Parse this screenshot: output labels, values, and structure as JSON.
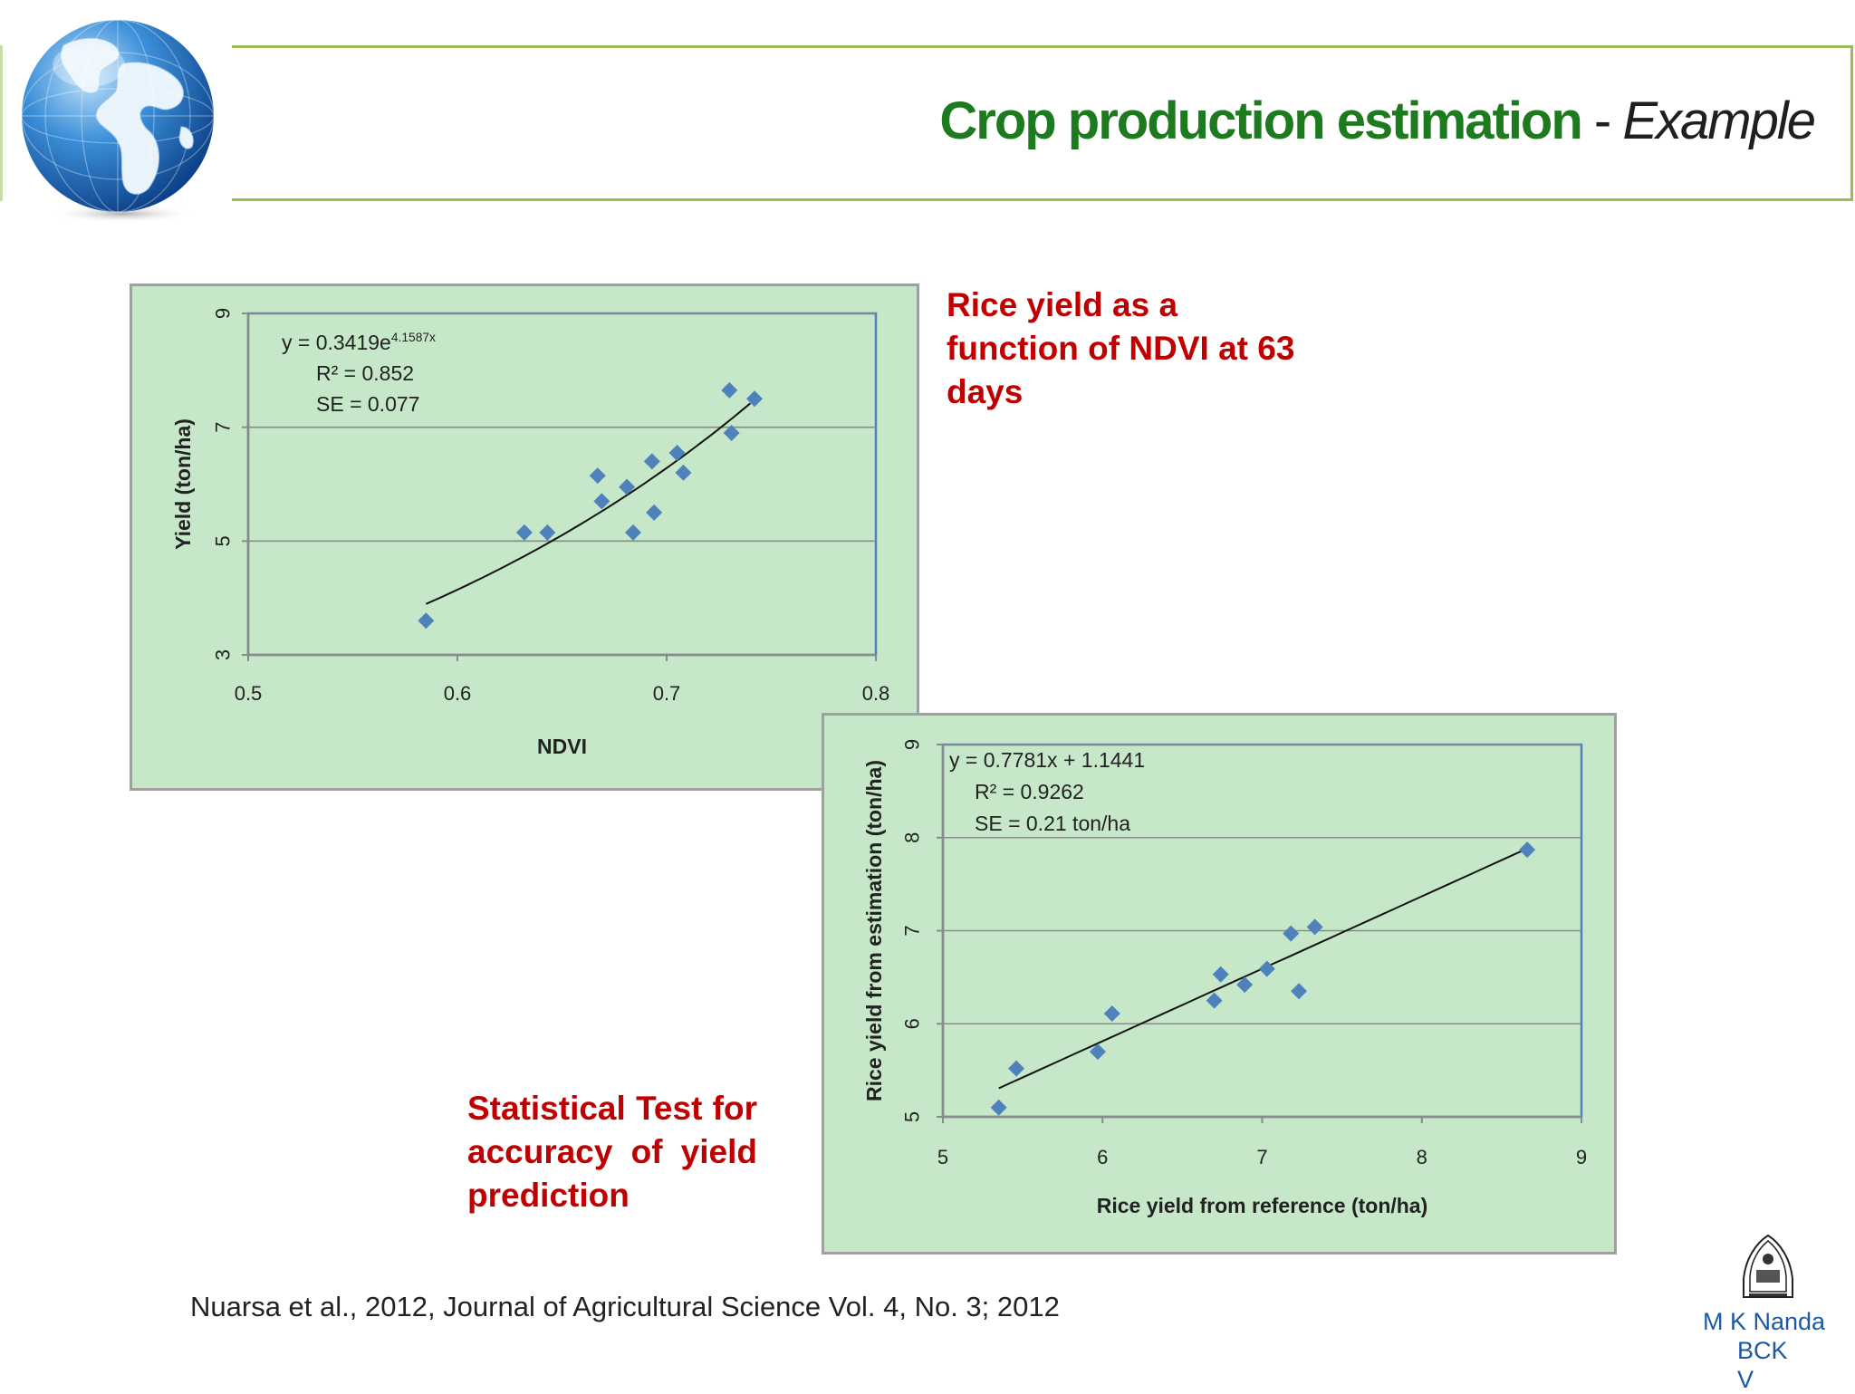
{
  "slide": {
    "title_main": "Crop production estimation",
    "title_sep": " - ",
    "title_example": "Example",
    "caption1": "Rice yield as a function of NDVI at 63 days",
    "caption2": "Statistical Test for accuracy of yield prediction",
    "citation": "Nuarsa et al., 2012,  Journal of Agricultural Science Vol. 4, No. 3; 2012",
    "author_line1": "M K Nanda",
    "author_line2": "BCK",
    "author_line3": "V"
  },
  "colors": {
    "title_green": "#1e7a1e",
    "caption_red": "#c00000",
    "chart_bg": "#c6e8c8",
    "marker_blue": "#4f81bd",
    "rule_green": "#9bbb59"
  },
  "chart_data": [
    {
      "type": "scatter",
      "title": "",
      "xlabel": "NDVI",
      "ylabel": "Yield (ton/ha)",
      "xlim": [
        0.5,
        0.8
      ],
      "ylim": [
        3,
        9
      ],
      "xticks": [
        0.5,
        0.6,
        0.7,
        0.8
      ],
      "yticks": [
        3,
        5,
        7,
        9
      ],
      "xtick_labels": [
        "0.5",
        "0.6",
        "0.7",
        "0.8"
      ],
      "ytick_labels": [
        "3",
        "5",
        "7",
        "9"
      ],
      "grid": "horizontal",
      "annotation": [
        "y = 0.3419e^4.1587x",
        "R² = 0.852",
        "SE = 0.077"
      ],
      "trendline": {
        "kind": "exponential",
        "a": 0.3419,
        "b": 4.1587,
        "x_from": 0.585,
        "x_to": 0.74
      },
      "series": [
        {
          "x": [
            0.585,
            0.632,
            0.643,
            0.667,
            0.669,
            0.681,
            0.684,
            0.693,
            0.694,
            0.705,
            0.708,
            0.73,
            0.731,
            0.742
          ],
          "y": [
            3.6,
            5.15,
            5.15,
            6.15,
            5.7,
            5.95,
            5.15,
            6.4,
            5.5,
            6.55,
            6.2,
            7.65,
            6.9,
            7.5
          ]
        }
      ]
    },
    {
      "type": "scatter",
      "title": "",
      "xlabel": "Rice yield from reference (ton/ha)",
      "ylabel": "Rice yield from estimation (ton/ha)",
      "xlim": [
        5,
        9
      ],
      "ylim": [
        5,
        9
      ],
      "xticks": [
        5,
        6,
        7,
        8,
        9
      ],
      "yticks": [
        5,
        6,
        7,
        8,
        9
      ],
      "xtick_labels": [
        "5",
        "6",
        "7",
        "8",
        "9"
      ],
      "ytick_labels": [
        "5",
        "6",
        "7",
        "8",
        "9"
      ],
      "grid": "horizontal",
      "annotation": [
        "y = 0.7781x + 1.1441",
        "R² = 0.9262",
        "SE = 0.21 ton/ha"
      ],
      "trendline": {
        "kind": "linear",
        "slope": 0.7781,
        "intercept": 1.1441,
        "x_from": 5.35,
        "x_to": 8.65
      },
      "series": [
        {
          "x": [
            5.35,
            5.46,
            5.97,
            6.06,
            6.7,
            6.74,
            6.89,
            7.03,
            7.18,
            7.23,
            7.33,
            8.66
          ],
          "y": [
            5.1,
            5.52,
            5.7,
            6.11,
            6.25,
            6.53,
            6.42,
            6.59,
            6.97,
            6.35,
            7.04,
            7.87
          ]
        }
      ]
    }
  ]
}
